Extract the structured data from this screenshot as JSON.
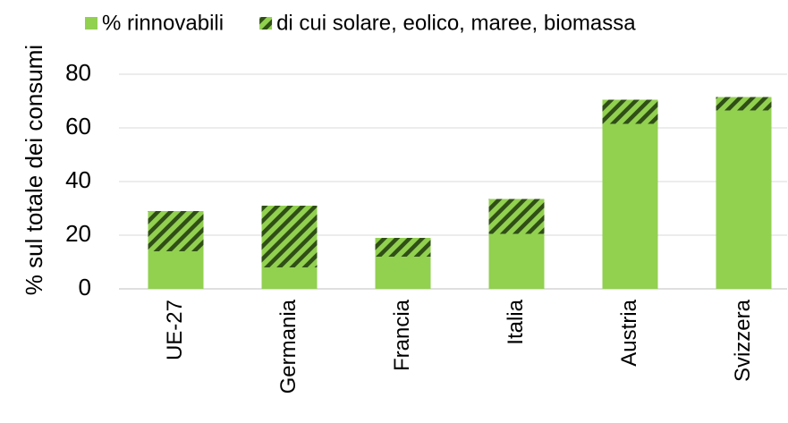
{
  "chart_data": {
    "type": "stacked_bar",
    "ylabel": "% sul totale dei consumi",
    "categories": [
      "UE-27",
      "Germania",
      "Francia",
      "Italia",
      "Austria",
      "Svizzera"
    ],
    "series": [
      {
        "name": "% rinnovabili",
        "color": "#92d050",
        "values": [
          14,
          8,
          12,
          20.5,
          61.5,
          66.5
        ]
      },
      {
        "name": "di cui solare, eolico, maree, biomassa",
        "color": "#92d050",
        "hatch": true,
        "hatch_color": "#2f4f16",
        "values": [
          15,
          23,
          7,
          13,
          9,
          5
        ]
      }
    ],
    "ylim": [
      0,
      80
    ],
    "yticks": [
      0,
      20,
      40,
      60,
      80
    ],
    "grid": true,
    "legend": "top"
  }
}
